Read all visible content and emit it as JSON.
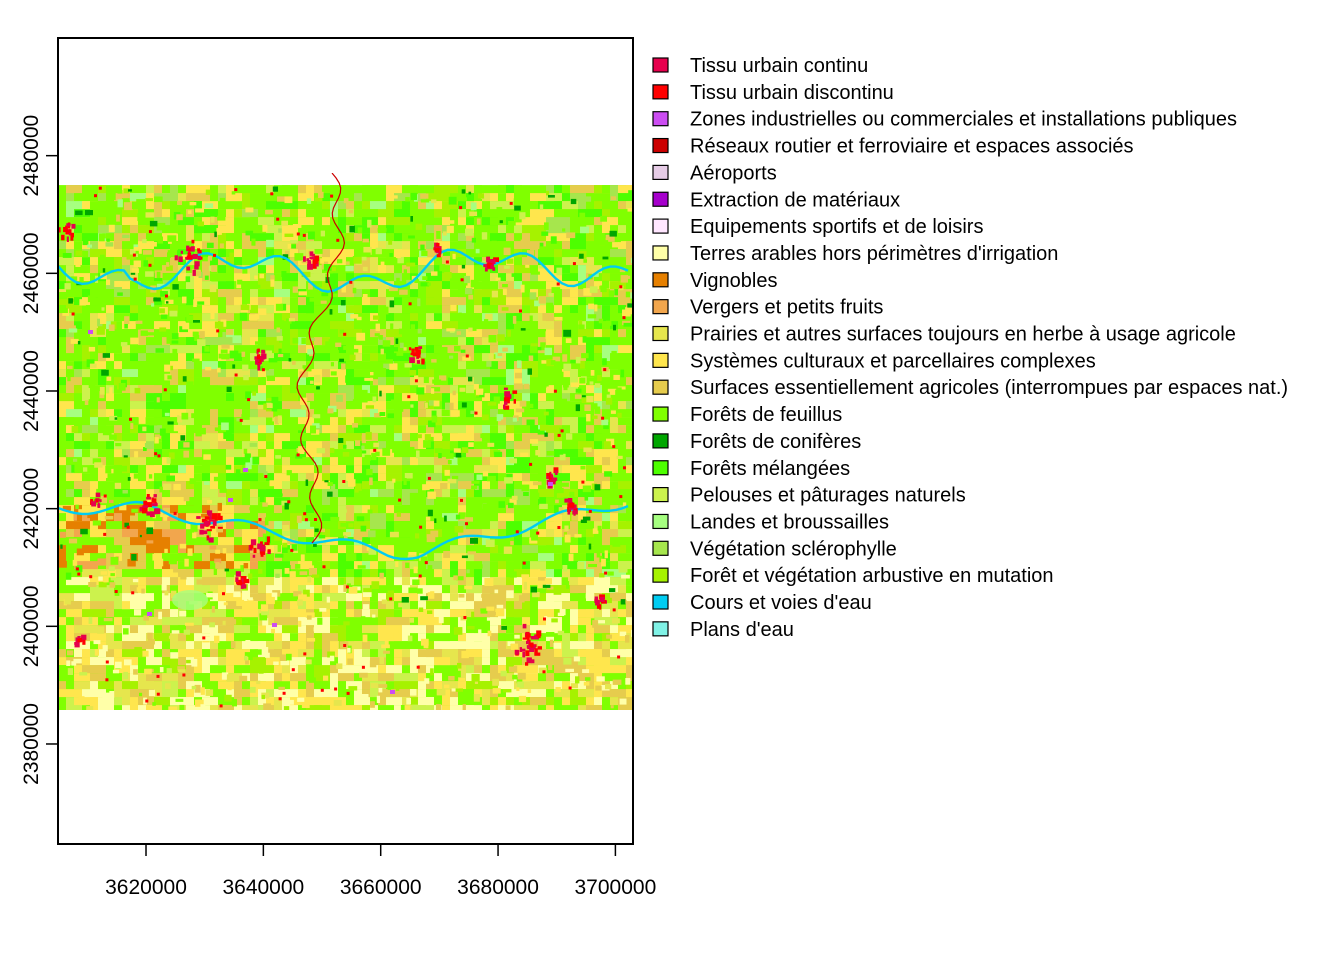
{
  "chart_data": {
    "type": "heatmap",
    "title": "",
    "xlabel": "",
    "ylabel": "",
    "xlim": [
      3605000,
      3703000
    ],
    "ylim": [
      2363000,
      2500000
    ],
    "raster_extent": {
      "x": [
        3605000,
        3703000
      ],
      "y": [
        2383000,
        2475000
      ]
    },
    "x_ticks": [
      {
        "value": 3620000,
        "label": "3620000"
      },
      {
        "value": 3640000,
        "label": "3640000"
      },
      {
        "value": 3660000,
        "label": "3660000"
      },
      {
        "value": 3680000,
        "label": "3680000"
      },
      {
        "value": 3700000,
        "label": "3700000"
      }
    ],
    "y_ticks": [
      {
        "value": 2380000,
        "label": "2380000"
      },
      {
        "value": 2400000,
        "label": "2400000"
      },
      {
        "value": 2420000,
        "label": "2420000"
      },
      {
        "value": 2440000,
        "label": "2440000"
      },
      {
        "value": 2460000,
        "label": "2460000"
      },
      {
        "value": 2480000,
        "label": "2480000"
      }
    ],
    "grid": false,
    "legend_position": "right",
    "legend": [
      {
        "label": "Tissu urbain continu",
        "color": "#E6004D"
      },
      {
        "label": "Tissu urbain discontinu",
        "color": "#FF0000"
      },
      {
        "label": "Zones industrielles ou commerciales et installations publiques",
        "color": "#CC4DF2"
      },
      {
        "label": "Réseaux routier et ferroviaire et espaces associés",
        "color": "#CC0000"
      },
      {
        "label": "Aéroports",
        "color": "#E6CCE6"
      },
      {
        "label": "Extraction de matériaux",
        "color": "#A600CC"
      },
      {
        "label": "Equipements sportifs et de loisirs",
        "color": "#FFE6FF"
      },
      {
        "label": "Terres arables hors périmètres d'irrigation",
        "color": "#FFFFA8"
      },
      {
        "label": "Vignobles",
        "color": "#E68000"
      },
      {
        "label": "Vergers et petits fruits",
        "color": "#F2A64D"
      },
      {
        "label": "Prairies et autres surfaces toujours en herbe à usage agricole",
        "color": "#E6E64D"
      },
      {
        "label": "Systèmes culturaux et parcellaires complexes",
        "color": "#FFE64D"
      },
      {
        "label": "Surfaces essentiellement agricoles (interrompues par espaces nat.)",
        "color": "#E6CC4D"
      },
      {
        "label": "Forêts de feuillus",
        "color": "#80FF00"
      },
      {
        "label": "Forêts de conifères",
        "color": "#00A600"
      },
      {
        "label": "Forêts mélangées",
        "color": "#4DFF00"
      },
      {
        "label": "Pelouses et pâturages naturels",
        "color": "#CCF24D"
      },
      {
        "label": "Landes et broussailles",
        "color": "#A6FF80"
      },
      {
        "label": "Végétation sclérophylle",
        "color": "#A6E64D"
      },
      {
        "label": "Forêt et végétation arbustive en mutation",
        "color": "#A6F200"
      },
      {
        "label": "Cours et voies d'eau",
        "color": "#00CCF2"
      },
      {
        "label": "Plans d'eau",
        "color": "#80F2E6"
      }
    ]
  }
}
